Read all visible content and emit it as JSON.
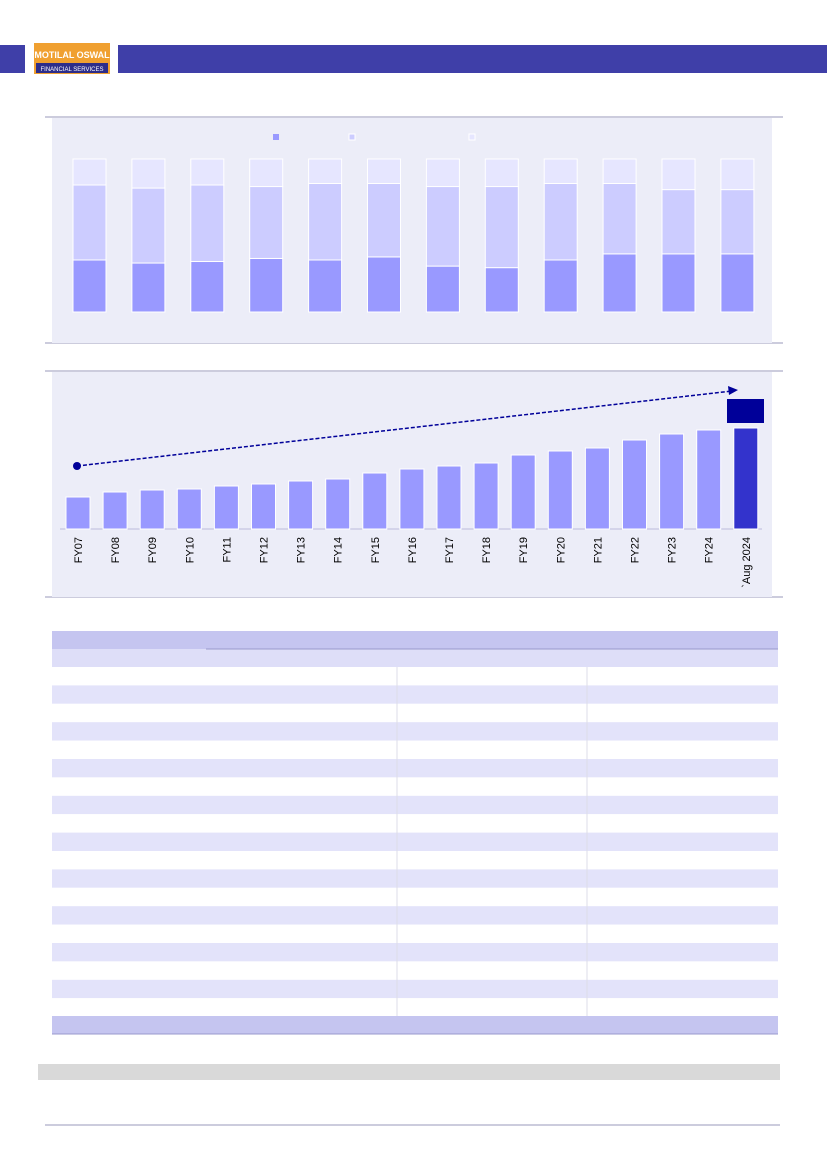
{
  "header": {
    "logo_title": "MOTILAL OSWAL",
    "logo_subtitle": "FINANCIAL SERVICES"
  },
  "chart_data": [
    {
      "type": "stacked-bar",
      "categories": [
        null,
        null,
        null,
        null,
        null,
        null,
        null,
        null,
        null,
        null,
        null,
        null
      ],
      "series": [
        {
          "color": "#9999ff",
          "values": [
            34,
            32,
            33,
            35,
            34,
            36,
            30,
            29,
            34,
            38,
            38,
            38
          ]
        },
        {
          "color": "#ccccff",
          "values": [
            49,
            49,
            50,
            47,
            50,
            48,
            52,
            53,
            50,
            46,
            42,
            42
          ]
        },
        {
          "color": "#e6e6ff",
          "values": [
            17,
            19,
            17,
            18,
            16,
            16,
            18,
            18,
            16,
            16,
            20,
            20
          ]
        }
      ]
    },
    {
      "type": "bar",
      "categories": [
        "FY07",
        "FY08",
        "FY09",
        "FY10",
        "FY11",
        "FY12",
        "FY13",
        "FY14",
        "FY15",
        "FY16",
        "FY17",
        "FY18",
        "FY19",
        "FY20",
        "FY21",
        "FY22",
        "FY23",
        "FY24",
        "`Aug 2024"
      ],
      "values": [
        32,
        37,
        39,
        40,
        43,
        45,
        48,
        50,
        56,
        60,
        63,
        66,
        74,
        78,
        81,
        89,
        95,
        99,
        101
      ],
      "color": "#9999ff",
      "highlight_color": "#3333cc"
    }
  ]
}
